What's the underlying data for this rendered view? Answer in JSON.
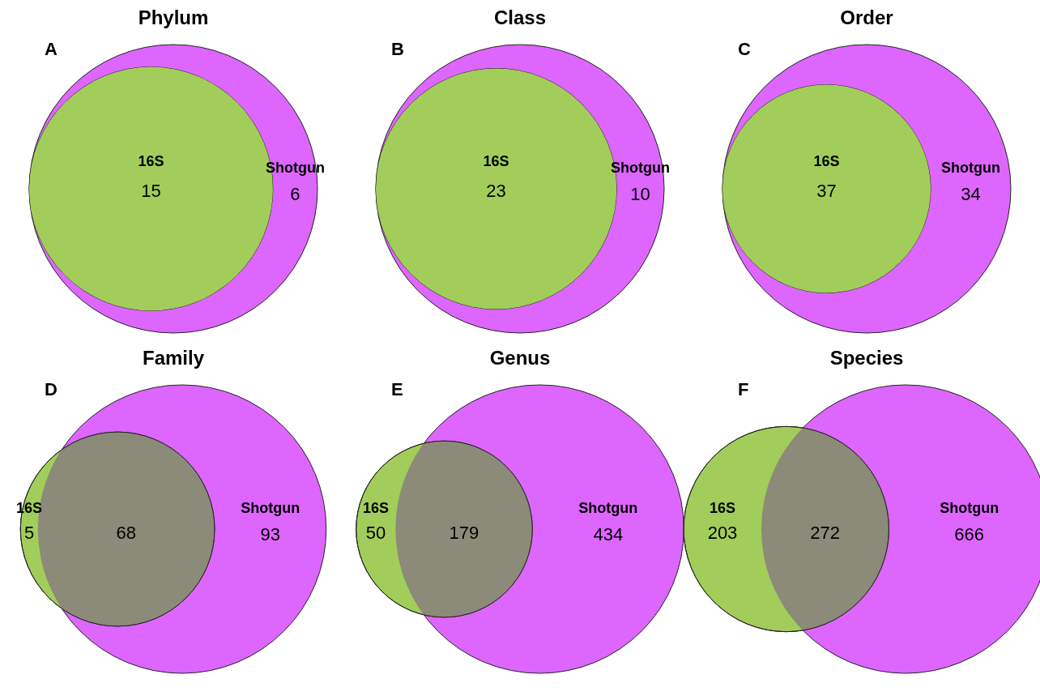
{
  "chart_data": [
    {
      "type": "other",
      "title": "Phylum",
      "annotations": [
        "A"
      ],
      "data_labels": true,
      "categories": [
        "16S",
        null,
        "Shotgun"
      ],
      "values": [
        null,
        15,
        6
      ],
      "colors": [
        "#a2cd5a",
        "#a2cd5a",
        "#dd66ff"
      ]
    },
    {
      "type": "other",
      "title": "Class",
      "annotations": [
        "B"
      ],
      "data_labels": true,
      "categories": [
        "16S",
        null,
        "Shotgun"
      ],
      "values": [
        null,
        23,
        10
      ],
      "colors": [
        "#a2cd5a",
        "#a2cd5a",
        "#dd66ff"
      ]
    },
    {
      "type": "other",
      "title": "Order",
      "annotations": [
        "C"
      ],
      "data_labels": true,
      "categories": [
        "16S",
        null,
        "Shotgun"
      ],
      "values": [
        null,
        37,
        34
      ],
      "colors": [
        "#a2cd5a",
        "#a2cd5a",
        "#dd66ff"
      ]
    },
    {
      "type": "other",
      "title": "Family",
      "annotations": [
        "D"
      ],
      "data_labels": true,
      "categories": [
        "16S",
        null,
        "Shotgun"
      ],
      "values": [
        5,
        68,
        93
      ],
      "colors": [
        "#a2cd5a",
        "#8c8a78",
        "#dd66ff"
      ]
    },
    {
      "type": "other",
      "title": "Genus",
      "annotations": [
        "E"
      ],
      "data_labels": true,
      "categories": [
        "16S",
        null,
        "Shotgun"
      ],
      "values": [
        50,
        179,
        434
      ],
      "colors": [
        "#a2cd5a",
        "#8c8a78",
        "#dd66ff"
      ]
    },
    {
      "type": "other",
      "title": "Species",
      "annotations": [
        "F"
      ],
      "data_labels": true,
      "categories": [
        "16S",
        null,
        "Shotgun"
      ],
      "values": [
        203,
        272,
        666
      ],
      "colors": [
        "#a2cd5a",
        "#8c8a78",
        "#dd66ff"
      ]
    }
  ]
}
